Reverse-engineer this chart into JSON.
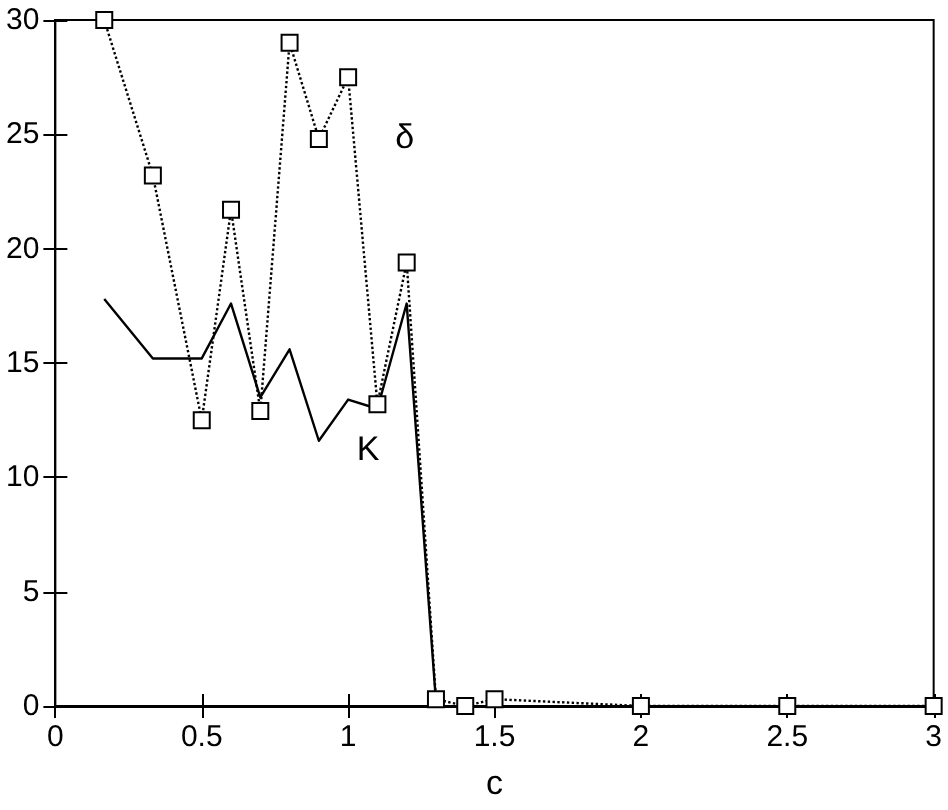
{
  "chart_data": {
    "type": "line",
    "xlabel": "c",
    "xlim": [
      0,
      3
    ],
    "xticks": [
      0,
      0.5,
      1,
      1.5,
      2,
      2.5,
      3
    ],
    "ylim": [
      0,
      30
    ],
    "yticks": [
      0,
      5,
      10,
      15,
      20,
      25,
      30
    ],
    "grid": false,
    "series": [
      {
        "name": "δ",
        "color": "#000000",
        "line_style": "dotted",
        "marker": "square",
        "x": [
          0.167,
          0.333,
          0.5,
          0.6,
          0.7,
          0.8,
          0.9,
          1.0,
          1.1,
          1.2,
          1.3,
          1.4,
          1.5,
          2,
          2.5,
          3
        ],
        "values": [
          30,
          23.2,
          12.5,
          21.7,
          12.9,
          29,
          24.8,
          27.5,
          13.2,
          19.4,
          0.3,
          0,
          0.3,
          0,
          0,
          0
        ]
      },
      {
        "name": "K",
        "color": "#000000",
        "line_style": "solid",
        "marker": "none",
        "x": [
          0.167,
          0.333,
          0.5,
          0.6,
          0.7,
          0.8,
          0.9,
          1.0,
          1.1,
          1.2,
          1.3
        ],
        "values": [
          17.8,
          15.2,
          15.2,
          17.6,
          13.5,
          15.6,
          11.6,
          13.4,
          13.0,
          17.6,
          0.2
        ]
      }
    ]
  }
}
